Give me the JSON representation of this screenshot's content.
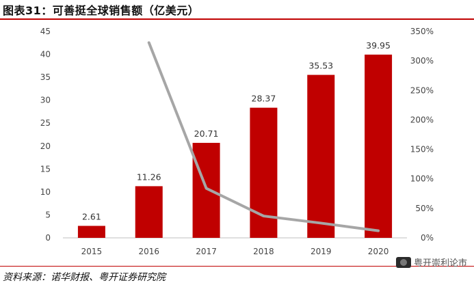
{
  "title": "图表31：可善挺全球销售额（亿美元）",
  "source": "资料来源：诺华财报、粤开证券研究院",
  "watermark": "粤开崇利论市",
  "colors": {
    "bar": "#c00000",
    "line": "#a6a6a6",
    "accent": "#c00000"
  },
  "chart_data": {
    "type": "bar",
    "title": "可善挺全球销售额（亿美元）",
    "categories": [
      "2015",
      "2016",
      "2017",
      "2018",
      "2019",
      "2020"
    ],
    "series": [
      {
        "type": "bar",
        "axis": "left",
        "values": [
          2.61,
          11.26,
          20.71,
          28.37,
          35.53,
          39.95
        ]
      },
      {
        "type": "line",
        "axis": "right",
        "values": [
          null,
          331,
          84,
          37,
          25,
          12
        ]
      }
    ],
    "data_labels": [
      "2.61",
      "11.26",
      "20.71",
      "28.37",
      "35.53",
      "39.95"
    ],
    "left_axis": {
      "ylim": [
        0,
        45
      ],
      "ticks": [
        "0",
        "5",
        "10",
        "15",
        "20",
        "25",
        "30",
        "35",
        "40",
        "45"
      ]
    },
    "right_axis": {
      "ylim": [
        0,
        350
      ],
      "ticks": [
        "0%",
        "50%",
        "100%",
        "150%",
        "200%",
        "250%",
        "300%",
        "350%"
      ]
    },
    "grid": false,
    "legend": "none"
  }
}
